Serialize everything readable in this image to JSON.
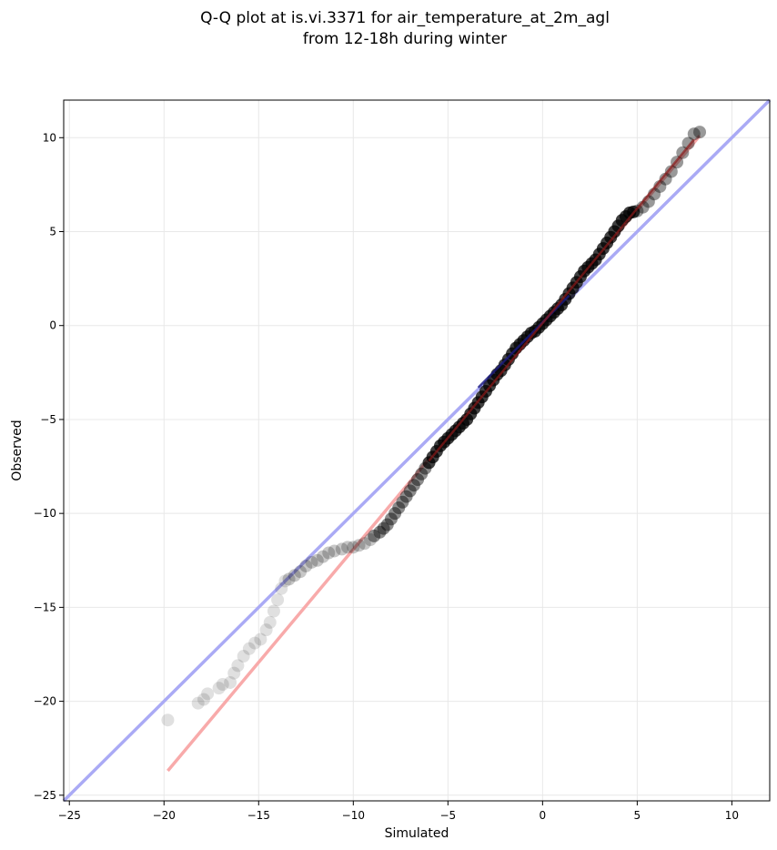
{
  "chart_data": {
    "type": "scatter",
    "title": "Q-Q plot at is.vi.3371 for air_temperature_at_2m_agl",
    "subtitle": "from 12-18h during winter",
    "xlabel": "Simulated",
    "ylabel": "Observed",
    "xlim": [
      -25.3,
      12
    ],
    "ylim": [
      -25.3,
      12
    ],
    "xticks": [
      -25,
      -20,
      -15,
      -10,
      -5,
      0,
      5,
      10
    ],
    "yticks": [
      -25,
      -20,
      -15,
      -10,
      -5,
      0,
      5,
      10
    ],
    "xtick_labels": [
      "−25",
      "−20",
      "−15",
      "−10",
      "−5",
      "0",
      "5",
      "10"
    ],
    "ytick_labels": [
      "−25",
      "−20",
      "−15",
      "−10",
      "−5",
      "0",
      "5",
      "10"
    ],
    "grid": true,
    "colors": {
      "points": "#000000",
      "identity_line": "#aaaaf5",
      "fit_line": "#f8aaaa",
      "central_line_blue": "#1a1a80",
      "central_line_red": "#8b1a1a"
    },
    "reference_lines": [
      {
        "kind": "identity",
        "x": [
          -25.3,
          12
        ],
        "y": [
          -25.3,
          12
        ]
      },
      {
        "kind": "fit",
        "x": [
          -19.8,
          8.3
        ],
        "y": [
          -23.7,
          10.1
        ]
      }
    ],
    "quantiles": [
      {
        "x": -19.8,
        "y": -21.0
      },
      {
        "x": -18.2,
        "y": -20.1
      },
      {
        "x": -17.9,
        "y": -19.9
      },
      {
        "x": -17.7,
        "y": -19.6
      },
      {
        "x": -17.1,
        "y": -19.3
      },
      {
        "x": -16.9,
        "y": -19.1
      },
      {
        "x": -16.5,
        "y": -19.0
      },
      {
        "x": -16.3,
        "y": -18.5
      },
      {
        "x": -16.1,
        "y": -18.1
      },
      {
        "x": -15.8,
        "y": -17.6
      },
      {
        "x": -15.5,
        "y": -17.2
      },
      {
        "x": -15.2,
        "y": -16.9
      },
      {
        "x": -14.9,
        "y": -16.7
      },
      {
        "x": -14.6,
        "y": -16.2
      },
      {
        "x": -14.4,
        "y": -15.8
      },
      {
        "x": -14.2,
        "y": -15.2
      },
      {
        "x": -14.0,
        "y": -14.6
      },
      {
        "x": -13.8,
        "y": -14.0
      },
      {
        "x": -13.6,
        "y": -13.6
      },
      {
        "x": -13.4,
        "y": -13.5
      },
      {
        "x": -13.1,
        "y": -13.3
      },
      {
        "x": -12.8,
        "y": -13.1
      },
      {
        "x": -12.5,
        "y": -12.8
      },
      {
        "x": -12.2,
        "y": -12.6
      },
      {
        "x": -11.9,
        "y": -12.5
      },
      {
        "x": -11.6,
        "y": -12.3
      },
      {
        "x": -11.3,
        "y": -12.1
      },
      {
        "x": -11.0,
        "y": -12.0
      },
      {
        "x": -10.6,
        "y": -11.9
      },
      {
        "x": -10.3,
        "y": -11.8
      },
      {
        "x": -10.0,
        "y": -11.8
      },
      {
        "x": -9.7,
        "y": -11.7
      },
      {
        "x": -9.4,
        "y": -11.6
      },
      {
        "x": -9.1,
        "y": -11.4
      },
      {
        "x": -8.9,
        "y": -11.2
      },
      {
        "x": -8.6,
        "y": -11.0
      },
      {
        "x": -8.4,
        "y": -10.8
      },
      {
        "x": -8.2,
        "y": -10.6
      },
      {
        "x": -8.0,
        "y": -10.3
      },
      {
        "x": -7.8,
        "y": -10.0
      },
      {
        "x": -7.6,
        "y": -9.7
      },
      {
        "x": -7.4,
        "y": -9.4
      },
      {
        "x": -7.2,
        "y": -9.1
      },
      {
        "x": -7.0,
        "y": -8.8
      },
      {
        "x": -6.8,
        "y": -8.5
      },
      {
        "x": -6.6,
        "y": -8.2
      },
      {
        "x": -6.4,
        "y": -7.9
      },
      {
        "x": -6.2,
        "y": -7.6
      },
      {
        "x": -6.0,
        "y": -7.3
      },
      {
        "x": -5.8,
        "y": -7.0
      },
      {
        "x": -5.6,
        "y": -6.7
      },
      {
        "x": -5.4,
        "y": -6.4
      },
      {
        "x": -5.2,
        "y": -6.2
      },
      {
        "x": -5.0,
        "y": -6.0
      },
      {
        "x": -4.8,
        "y": -5.8
      },
      {
        "x": -4.6,
        "y": -5.6
      },
      {
        "x": -4.4,
        "y": -5.4
      },
      {
        "x": -4.2,
        "y": -5.2
      },
      {
        "x": -4.0,
        "y": -5.0
      },
      {
        "x": -3.8,
        "y": -4.7
      },
      {
        "x": -3.6,
        "y": -4.4
      },
      {
        "x": -3.4,
        "y": -4.1
      },
      {
        "x": -3.2,
        "y": -3.8
      },
      {
        "x": -3.0,
        "y": -3.5
      },
      {
        "x": -2.8,
        "y": -3.2
      },
      {
        "x": -2.6,
        "y": -2.9
      },
      {
        "x": -2.4,
        "y": -2.6
      },
      {
        "x": -2.2,
        "y": -2.4
      },
      {
        "x": -2.0,
        "y": -2.1
      },
      {
        "x": -1.8,
        "y": -1.8
      },
      {
        "x": -1.6,
        "y": -1.5
      },
      {
        "x": -1.4,
        "y": -1.2
      },
      {
        "x": -1.2,
        "y": -1.0
      },
      {
        "x": -1.0,
        "y": -0.8
      },
      {
        "x": -0.8,
        "y": -0.6
      },
      {
        "x": -0.6,
        "y": -0.4
      },
      {
        "x": -0.4,
        "y": -0.3
      },
      {
        "x": -0.2,
        "y": -0.1
      },
      {
        "x": 0.0,
        "y": 0.1
      },
      {
        "x": 0.2,
        "y": 0.3
      },
      {
        "x": 0.4,
        "y": 0.5
      },
      {
        "x": 0.6,
        "y": 0.7
      },
      {
        "x": 0.8,
        "y": 0.9
      },
      {
        "x": 1.0,
        "y": 1.1
      },
      {
        "x": 1.2,
        "y": 1.4
      },
      {
        "x": 1.4,
        "y": 1.7
      },
      {
        "x": 1.6,
        "y": 2.0
      },
      {
        "x": 1.8,
        "y": 2.3
      },
      {
        "x": 2.0,
        "y": 2.6
      },
      {
        "x": 2.2,
        "y": 2.9
      },
      {
        "x": 2.4,
        "y": 3.1
      },
      {
        "x": 2.6,
        "y": 3.3
      },
      {
        "x": 2.8,
        "y": 3.5
      },
      {
        "x": 3.0,
        "y": 3.8
      },
      {
        "x": 3.2,
        "y": 4.1
      },
      {
        "x": 3.4,
        "y": 4.4
      },
      {
        "x": 3.6,
        "y": 4.7
      },
      {
        "x": 3.8,
        "y": 5.0
      },
      {
        "x": 4.0,
        "y": 5.3
      },
      {
        "x": 4.2,
        "y": 5.6
      },
      {
        "x": 4.4,
        "y": 5.8
      },
      {
        "x": 4.6,
        "y": 6.0
      },
      {
        "x": 4.8,
        "y": 6.05
      },
      {
        "x": 5.0,
        "y": 6.1
      },
      {
        "x": 5.3,
        "y": 6.3
      },
      {
        "x": 5.6,
        "y": 6.6
      },
      {
        "x": 5.9,
        "y": 7.0
      },
      {
        "x": 6.2,
        "y": 7.4
      },
      {
        "x": 6.5,
        "y": 7.8
      },
      {
        "x": 6.8,
        "y": 8.2
      },
      {
        "x": 7.1,
        "y": 8.7
      },
      {
        "x": 7.4,
        "y": 9.2
      },
      {
        "x": 7.7,
        "y": 9.7
      },
      {
        "x": 8.0,
        "y": 10.2
      },
      {
        "x": 8.3,
        "y": 10.3
      }
    ]
  }
}
